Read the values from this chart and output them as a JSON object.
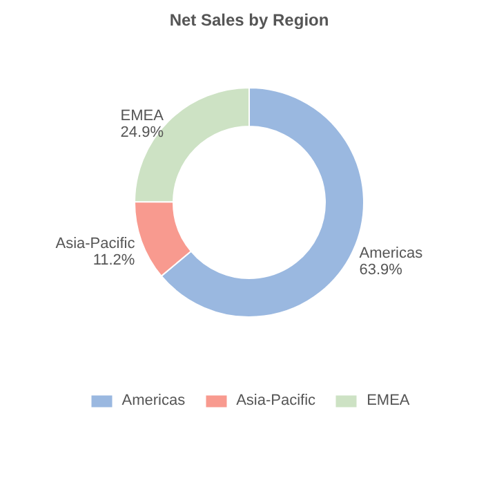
{
  "chart_data": {
    "type": "donut",
    "title": "Net Sales by Region",
    "categories": [
      "Americas",
      "Asia-Pacific",
      "EMEA"
    ],
    "values": [
      63.9,
      11.2,
      24.9
    ],
    "value_labels": [
      "63.9%",
      "11.2%",
      "24.9%"
    ],
    "colors": [
      "#9ab8e0",
      "#f89a8f",
      "#cde2c4"
    ],
    "legend": "bottom"
  }
}
